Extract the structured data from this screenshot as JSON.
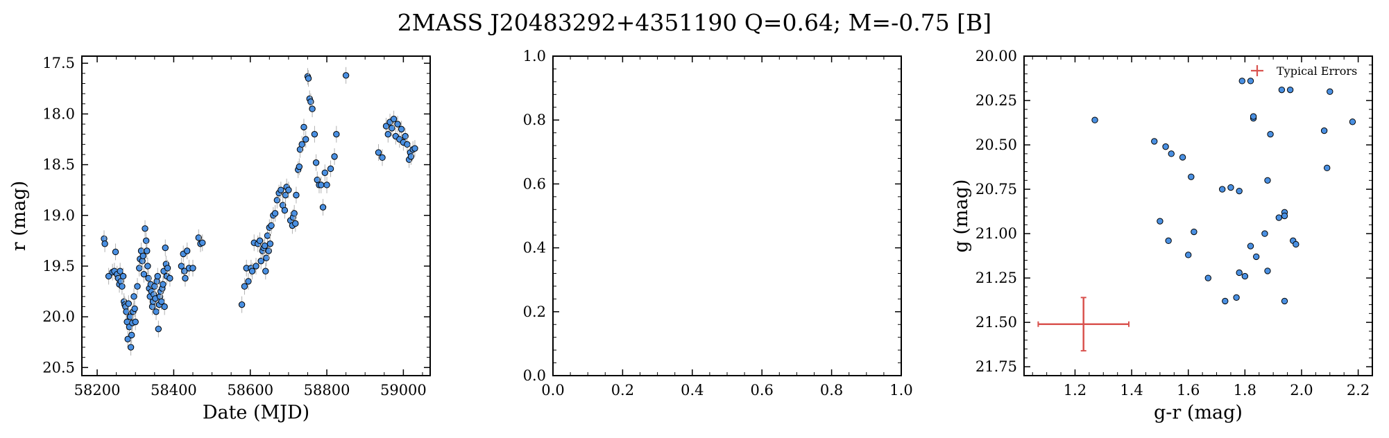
{
  "title": "2MASS J20483292+4351190  Q=0.64; M=-0.75 [B]",
  "colors": {
    "point": "#4a90e2",
    "point_edge": "#000000",
    "errorbar": "#d9534f",
    "errbar_light": "#b0b0b0"
  },
  "chart_data": [
    {
      "type": "scatter",
      "panel": "lightcurve",
      "xlabel": "Date (MJD)",
      "ylabel": "r (mag)",
      "xlim": [
        58160,
        59070
      ],
      "ylim": [
        20.58,
        17.43
      ],
      "y_inverted": true,
      "xticks": [
        58200,
        58400,
        58600,
        58800,
        59000
      ],
      "xtick_labels": [
        "58200",
        "58400",
        "58600",
        "58800",
        "59000"
      ],
      "yticks": [
        17.5,
        18.0,
        18.5,
        19.0,
        19.5,
        20.0,
        20.5
      ],
      "ytick_labels": [
        "17.5",
        "18.0",
        "18.5",
        "19.0",
        "19.5",
        "20.0",
        "20.5"
      ],
      "points": [
        [
          58218,
          19.23
        ],
        [
          58220,
          19.28
        ],
        [
          58230,
          19.6
        ],
        [
          58240,
          19.56
        ],
        [
          58245,
          19.55
        ],
        [
          58248,
          19.36
        ],
        [
          58252,
          19.58
        ],
        [
          58255,
          19.62
        ],
        [
          58258,
          19.68
        ],
        [
          58260,
          19.55
        ],
        [
          58262,
          19.65
        ],
        [
          58265,
          19.7
        ],
        [
          58268,
          19.6
        ],
        [
          58270,
          19.85
        ],
        [
          58272,
          19.88
        ],
        [
          58274,
          19.9
        ],
        [
          58276,
          19.95
        ],
        [
          58278,
          20.05
        ],
        [
          58280,
          20.22
        ],
        [
          58282,
          19.87
        ],
        [
          58284,
          20.1
        ],
        [
          58286,
          20.0
        ],
        [
          58288,
          20.3
        ],
        [
          58290,
          20.18
        ],
        [
          58292,
          20.06
        ],
        [
          58294,
          19.95
        ],
        [
          58296,
          19.8
        ],
        [
          58298,
          19.92
        ],
        [
          58300,
          20.05
        ],
        [
          58305,
          19.7
        ],
        [
          58310,
          19.52
        ],
        [
          58312,
          19.43
        ],
        [
          58315,
          19.35
        ],
        [
          58318,
          19.45
        ],
        [
          58320,
          19.4
        ],
        [
          58322,
          19.58
        ],
        [
          58325,
          19.13
        ],
        [
          58328,
          19.25
        ],
        [
          58330,
          19.35
        ],
        [
          58332,
          19.5
        ],
        [
          58334,
          19.62
        ],
        [
          58336,
          19.72
        ],
        [
          58338,
          19.8
        ],
        [
          58340,
          19.68
        ],
        [
          58342,
          19.75
        ],
        [
          58344,
          19.9
        ],
        [
          58346,
          19.85
        ],
        [
          58348,
          19.78
        ],
        [
          58350,
          19.7
        ],
        [
          58352,
          19.82
        ],
        [
          58354,
          19.95
        ],
        [
          58356,
          19.65
        ],
        [
          58358,
          19.6
        ],
        [
          58360,
          20.12
        ],
        [
          58362,
          19.88
        ],
        [
          58364,
          19.8
        ],
        [
          58366,
          19.75
        ],
        [
          58368,
          19.85
        ],
        [
          58370,
          19.72
        ],
        [
          58372,
          19.68
        ],
        [
          58374,
          19.55
        ],
        [
          58376,
          19.9
        ],
        [
          58378,
          19.32
        ],
        [
          58380,
          19.48
        ],
        [
          58382,
          19.6
        ],
        [
          58384,
          19.52
        ],
        [
          58390,
          19.62
        ],
        [
          58420,
          19.5
        ],
        [
          58425,
          19.38
        ],
        [
          58428,
          19.55
        ],
        [
          58430,
          19.62
        ],
        [
          58435,
          19.35
        ],
        [
          58440,
          19.52
        ],
        [
          58450,
          19.52
        ],
        [
          58465,
          19.22
        ],
        [
          58470,
          19.28
        ],
        [
          58475,
          19.27
        ],
        [
          58578,
          19.88
        ],
        [
          58585,
          19.7
        ],
        [
          58590,
          19.52
        ],
        [
          58595,
          19.65
        ],
        [
          58602,
          19.52
        ],
        [
          58605,
          19.55
        ],
        [
          58610,
          19.27
        ],
        [
          58615,
          19.5
        ],
        [
          58620,
          19.28
        ],
        [
          58625,
          19.25
        ],
        [
          58628,
          19.45
        ],
        [
          58632,
          19.35
        ],
        [
          58635,
          19.32
        ],
        [
          58638,
          19.3
        ],
        [
          58640,
          19.55
        ],
        [
          58642,
          19.42
        ],
        [
          58645,
          19.2
        ],
        [
          58648,
          19.35
        ],
        [
          58650,
          19.12
        ],
        [
          58652,
          19.28
        ],
        [
          58655,
          19.1
        ],
        [
          58660,
          19.0
        ],
        [
          58665,
          18.98
        ],
        [
          58670,
          18.85
        ],
        [
          58675,
          18.78
        ],
        [
          58680,
          18.75
        ],
        [
          58685,
          18.9
        ],
        [
          58690,
          18.95
        ],
        [
          58692,
          18.8
        ],
        [
          58695,
          18.72
        ],
        [
          58700,
          18.75
        ],
        [
          58705,
          19.05
        ],
        [
          58710,
          19.1
        ],
        [
          58712,
          19.02
        ],
        [
          58715,
          18.98
        ],
        [
          58718,
          19.08
        ],
        [
          58720,
          18.8
        ],
        [
          58725,
          18.55
        ],
        [
          58728,
          18.52
        ],
        [
          58730,
          18.35
        ],
        [
          58735,
          18.3
        ],
        [
          58740,
          18.13
        ],
        [
          58745,
          18.25
        ],
        [
          58750,
          17.63
        ],
        [
          58752,
          17.65
        ],
        [
          58755,
          17.85
        ],
        [
          58758,
          17.88
        ],
        [
          58762,
          17.95
        ],
        [
          58768,
          18.2
        ],
        [
          58772,
          18.48
        ],
        [
          58775,
          18.65
        ],
        [
          58780,
          18.7
        ],
        [
          58785,
          18.7
        ],
        [
          58790,
          18.92
        ],
        [
          58795,
          18.58
        ],
        [
          58800,
          18.7
        ],
        [
          58810,
          18.54
        ],
        [
          58820,
          18.42
        ],
        [
          58825,
          18.2
        ],
        [
          58850,
          17.62
        ],
        [
          58935,
          18.38
        ],
        [
          58945,
          18.43
        ],
        [
          58955,
          18.12
        ],
        [
          58960,
          18.2
        ],
        [
          58965,
          18.08
        ],
        [
          58970,
          18.14
        ],
        [
          58975,
          18.05
        ],
        [
          58980,
          18.22
        ],
        [
          58985,
          18.1
        ],
        [
          58990,
          18.25
        ],
        [
          58995,
          18.15
        ],
        [
          59000,
          18.28
        ],
        [
          59005,
          18.22
        ],
        [
          59010,
          18.3
        ],
        [
          59015,
          18.45
        ],
        [
          59018,
          18.38
        ],
        [
          59020,
          18.42
        ],
        [
          59025,
          18.35
        ],
        [
          59030,
          18.34
        ]
      ]
    },
    {
      "type": "scatter",
      "panel": "empty",
      "xlim": [
        0.0,
        1.0
      ],
      "ylim": [
        0.0,
        1.0
      ],
      "xticks": [
        0.0,
        0.2,
        0.4,
        0.6,
        0.8,
        1.0
      ],
      "xtick_labels": [
        "0.0",
        "0.2",
        "0.4",
        "0.6",
        "0.8",
        "1.0"
      ],
      "yticks": [
        0.0,
        0.2,
        0.4,
        0.6,
        0.8,
        1.0
      ],
      "ytick_labels": [
        "0.0",
        "0.2",
        "0.4",
        "0.6",
        "0.8",
        "1.0"
      ],
      "points": []
    },
    {
      "type": "scatter",
      "panel": "color-magnitude",
      "xlabel": "g-r (mag)",
      "ylabel": "g (mag)",
      "xlim": [
        1.02,
        2.25
      ],
      "ylim": [
        21.8,
        20.0
      ],
      "y_inverted": true,
      "xticks": [
        1.2,
        1.4,
        1.6,
        1.8,
        2.0,
        2.2
      ],
      "xtick_labels": [
        "1.2",
        "1.4",
        "1.6",
        "1.8",
        "2.0",
        "2.2"
      ],
      "yticks": [
        20.0,
        20.25,
        20.5,
        20.75,
        21.0,
        21.25,
        21.5,
        21.75
      ],
      "ytick_labels": [
        "20.00",
        "20.25",
        "20.50",
        "20.75",
        "21.00",
        "21.25",
        "21.50",
        "21.75"
      ],
      "legend": {
        "label": "Typical Errors",
        "loc": "upper right"
      },
      "typical_error": {
        "x": 1.23,
        "y": 21.51,
        "xerr": 0.16,
        "yerr": 0.15
      },
      "points": [
        [
          1.27,
          20.36
        ],
        [
          1.48,
          20.48
        ],
        [
          1.5,
          20.93
        ],
        [
          1.52,
          20.51
        ],
        [
          1.53,
          21.04
        ],
        [
          1.54,
          20.55
        ],
        [
          1.58,
          20.57
        ],
        [
          1.6,
          21.12
        ],
        [
          1.61,
          20.68
        ],
        [
          1.62,
          20.99
        ],
        [
          1.67,
          21.25
        ],
        [
          1.72,
          20.75
        ],
        [
          1.73,
          21.38
        ],
        [
          1.75,
          20.74
        ],
        [
          1.77,
          21.36
        ],
        [
          1.78,
          21.22
        ],
        [
          1.78,
          20.76
        ],
        [
          1.79,
          20.14
        ],
        [
          1.8,
          21.24
        ],
        [
          1.82,
          20.14
        ],
        [
          1.82,
          21.07
        ],
        [
          1.83,
          20.35
        ],
        [
          1.83,
          20.34
        ],
        [
          1.84,
          21.13
        ],
        [
          1.87,
          21.0
        ],
        [
          1.88,
          21.21
        ],
        [
          1.88,
          20.7
        ],
        [
          1.89,
          20.44
        ],
        [
          1.92,
          20.91
        ],
        [
          1.93,
          20.19
        ],
        [
          1.94,
          20.88
        ],
        [
          1.94,
          20.9
        ],
        [
          1.94,
          21.38
        ],
        [
          1.96,
          20.19
        ],
        [
          1.97,
          21.04
        ],
        [
          1.98,
          21.06
        ],
        [
          2.08,
          20.42
        ],
        [
          2.09,
          20.63
        ],
        [
          2.1,
          20.2
        ],
        [
          2.18,
          20.37
        ]
      ]
    }
  ]
}
